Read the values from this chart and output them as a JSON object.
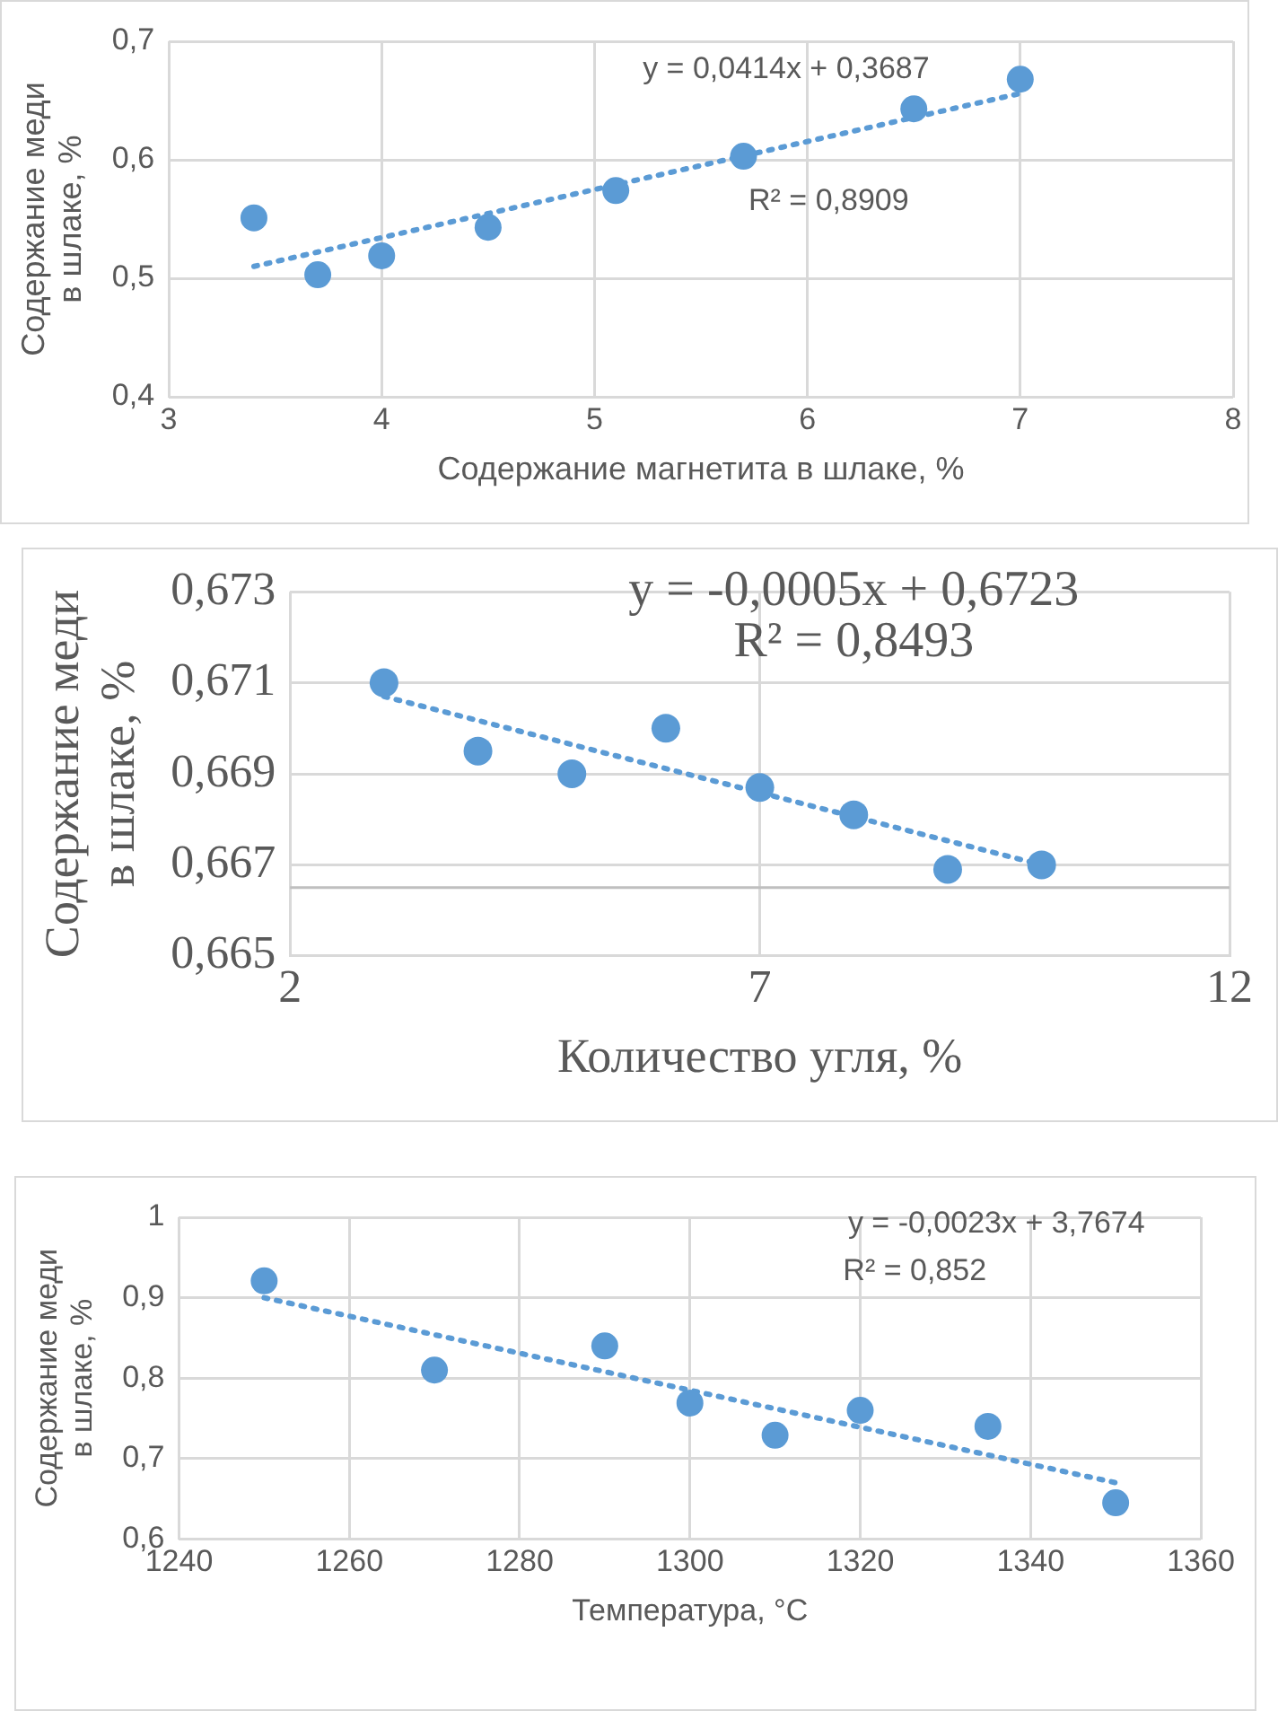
{
  "chart_data": [
    {
      "type": "scatter",
      "xlabel": "Содержание магнетита в шлаке, %",
      "ylabel": "Содержание меди в шлаке, %",
      "xlim": [
        3,
        8
      ],
      "xticks": [
        3,
        4,
        5,
        6,
        7,
        8
      ],
      "ylim": [
        0.4,
        0.7
      ],
      "yticks": [
        {
          "value": 0.4,
          "label": "0,4"
        },
        {
          "value": 0.5,
          "label": "0,5"
        },
        {
          "value": 0.6,
          "label": "0,6"
        },
        {
          "value": 0.7,
          "label": "0,7"
        }
      ],
      "grid": true,
      "legend": false,
      "marker": "circle",
      "annotations": [
        "y = 0,0414x + 0,3687",
        "R² = 0,8909"
      ],
      "series": [
        {
          "type": "scatter",
          "color": "#5b9bd5",
          "x": [
            3.4,
            3.7,
            4.0,
            4.5,
            5.1,
            5.7,
            6.5,
            7.0
          ],
          "values": [
            0.551,
            0.503,
            0.519,
            0.543,
            0.574,
            0.603,
            0.643,
            0.668
          ]
        },
        {
          "type": "line",
          "color": "#5b9bd5",
          "line_style": "dotted",
          "marker": "none",
          "x": [
            3.4,
            7.0
          ],
          "values": [
            0.51,
            0.656
          ]
        }
      ]
    },
    {
      "type": "scatter",
      "xlabel": "Количество угля, %",
      "ylabel": "Содержание меди в шлаке, %",
      "xlim": [
        2,
        12
      ],
      "xticks": [
        2,
        7,
        12
      ],
      "ylim": [
        0.665,
        0.673
      ],
      "yticks": [
        {
          "value": 0.665,
          "label": "0,665"
        },
        {
          "value": 0.667,
          "label": "0,667"
        },
        {
          "value": 0.669,
          "label": "0,669"
        },
        {
          "value": 0.671,
          "label": "0,671"
        },
        {
          "value": 0.673,
          "label": "0,673"
        }
      ],
      "grid": true,
      "legend": false,
      "marker": "circle",
      "annotations": [
        "y = -0,0005x + 0,6723",
        "R² = 0,8493"
      ],
      "ref_lines": [
        {
          "axis": "y",
          "value": 0.6665,
          "color": "#bfbfbf"
        }
      ],
      "series": [
        {
          "type": "scatter",
          "color": "#5b9bd5",
          "x": [
            3,
            4,
            5,
            6,
            7,
            8,
            9,
            10
          ],
          "values": [
            0.671,
            0.6695,
            0.669,
            0.67,
            0.6687,
            0.6681,
            0.6669,
            0.667
          ]
        },
        {
          "type": "line",
          "color": "#5b9bd5",
          "line_style": "dotted",
          "marker": "none",
          "x": [
            3,
            10
          ],
          "values": [
            0.6707,
            0.667
          ]
        }
      ]
    },
    {
      "type": "scatter",
      "xlabel": "Температура, °C",
      "ylabel": "Содержание меди в шлаке, %",
      "xlim": [
        1240,
        1360
      ],
      "xticks": [
        1240,
        1260,
        1280,
        1300,
        1320,
        1340,
        1360
      ],
      "ylim": [
        0.6,
        1
      ],
      "yticks": [
        {
          "value": 0.6,
          "label": "0,6"
        },
        {
          "value": 0.7,
          "label": "0,7"
        },
        {
          "value": 0.8,
          "label": "0,8"
        },
        {
          "value": 0.9,
          "label": "0,9"
        },
        {
          "value": 1,
          "label": "1"
        }
      ],
      "grid": true,
      "legend": false,
      "marker": "circle",
      "annotations": [
        "y = -0,0023x + 3,7674",
        "R² = 0,852"
      ],
      "series": [
        {
          "type": "scatter",
          "color": "#5b9bd5",
          "x": [
            1250,
            1270,
            1290,
            1300,
            1310,
            1320,
            1335,
            1350
          ],
          "values": [
            0.921,
            0.81,
            0.84,
            0.769,
            0.729,
            0.76,
            0.74,
            0.645
          ]
        },
        {
          "type": "line",
          "color": "#5b9bd5",
          "line_style": "dotted",
          "marker": "none",
          "x": [
            1250,
            1350
          ],
          "values": [
            0.9,
            0.67
          ]
        }
      ]
    }
  ]
}
